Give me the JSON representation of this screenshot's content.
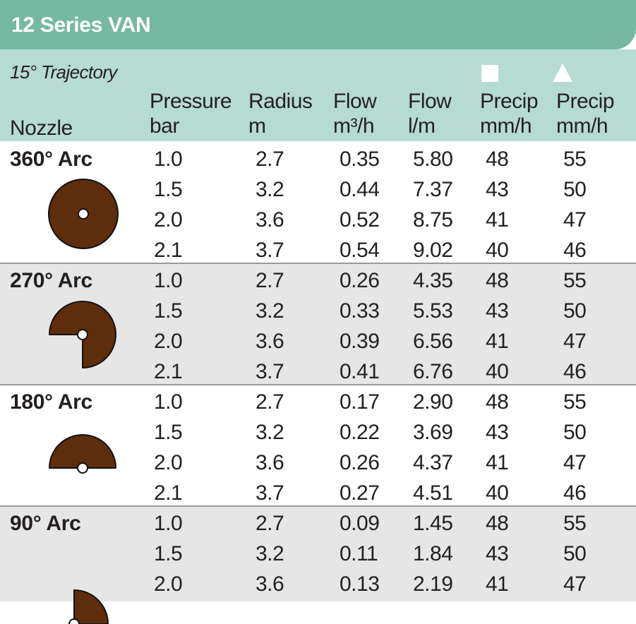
{
  "title": "12 Series VAN",
  "trajectory": "15° Trajectory",
  "columns": {
    "nozzle": "Nozzle",
    "pressure": [
      "Pressure",
      "bar"
    ],
    "radius": [
      "Radius",
      "m"
    ],
    "flow_m3": [
      "Flow",
      "m³/h"
    ],
    "flow_lm": [
      "Flow",
      "l/m"
    ],
    "precip_square": [
      "Precip",
      "mm/h"
    ],
    "precip_triangle": [
      "Precip",
      "mm/h"
    ]
  },
  "colors": {
    "title_bar": "#76b9a3",
    "header_bg": "#b6dbd2",
    "alt_row_bg": "#e6e6e6",
    "arc_fill": "#5e2d0c"
  },
  "groups": [
    {
      "label": "360° Arc",
      "arc_icon": "arc-360-icon",
      "rows": [
        [
          "1.0",
          "2.7",
          "0.35",
          "5.80",
          "48",
          "55"
        ],
        [
          "1.5",
          "3.2",
          "0.44",
          "7.37",
          "43",
          "50"
        ],
        [
          "2.0",
          "3.6",
          "0.52",
          "8.75",
          "41",
          "47"
        ],
        [
          "2.1",
          "3.7",
          "0.54",
          "9.02",
          "40",
          "46"
        ]
      ]
    },
    {
      "label": "270° Arc",
      "arc_icon": "arc-270-icon",
      "rows": [
        [
          "1.0",
          "2.7",
          "0.26",
          "4.35",
          "48",
          "55"
        ],
        [
          "1.5",
          "3.2",
          "0.33",
          "5.53",
          "43",
          "50"
        ],
        [
          "2.0",
          "3.6",
          "0.39",
          "6.56",
          "41",
          "47"
        ],
        [
          "2.1",
          "3.7",
          "0.41",
          "6.76",
          "40",
          "46"
        ]
      ]
    },
    {
      "label": "180° Arc",
      "arc_icon": "arc-180-icon",
      "rows": [
        [
          "1.0",
          "2.7",
          "0.17",
          "2.90",
          "48",
          "55"
        ],
        [
          "1.5",
          "3.2",
          "0.22",
          "3.69",
          "43",
          "50"
        ],
        [
          "2.0",
          "3.6",
          "0.26",
          "4.37",
          "41",
          "47"
        ],
        [
          "2.1",
          "3.7",
          "0.27",
          "4.51",
          "40",
          "46"
        ]
      ]
    },
    {
      "label": "90° Arc",
      "arc_icon": "arc-90-icon",
      "rows": [
        [
          "1.0",
          "2.7",
          "0.09",
          "1.45",
          "48",
          "55"
        ],
        [
          "1.5",
          "3.2",
          "0.11",
          "1.84",
          "43",
          "50"
        ],
        [
          "2.0",
          "3.6",
          "0.13",
          "2.19",
          "41",
          "47"
        ]
      ]
    }
  ]
}
